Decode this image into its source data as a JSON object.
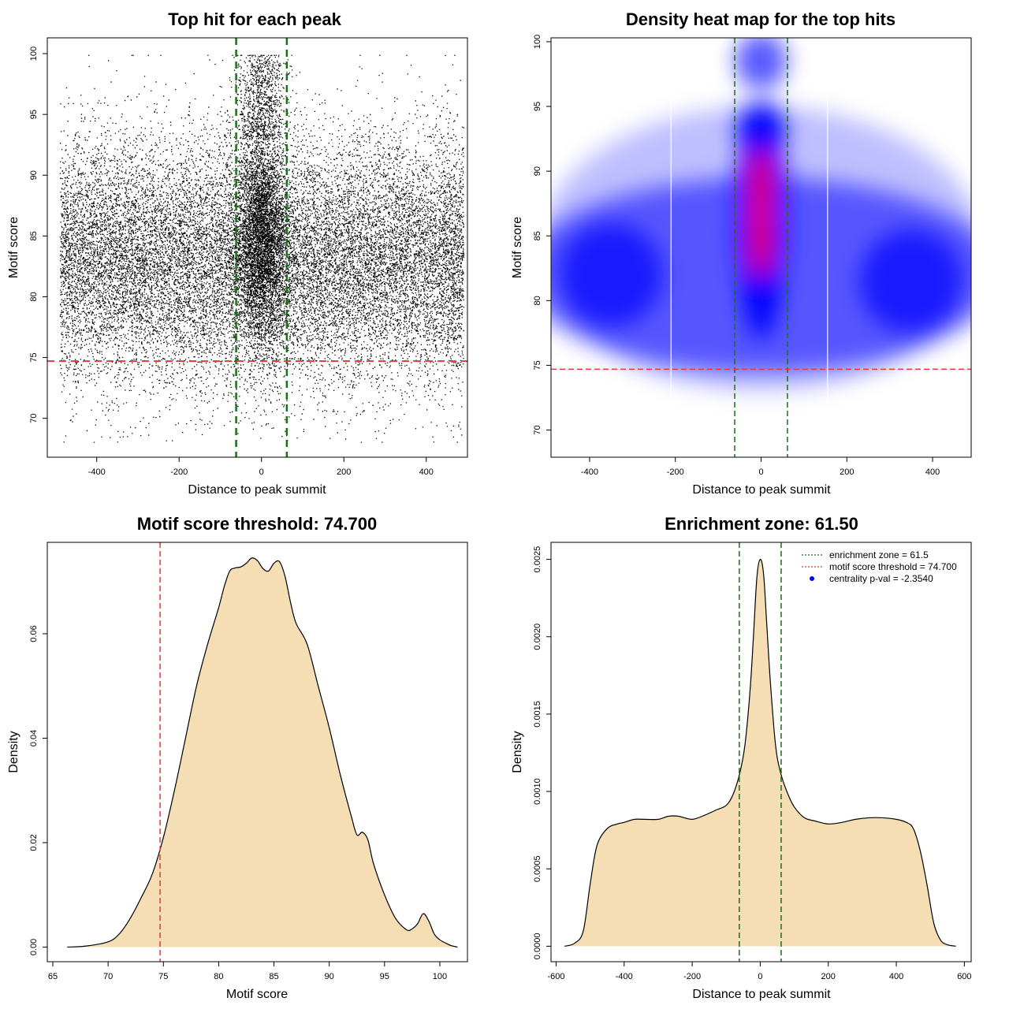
{
  "colors": {
    "scatter_point": "#000000",
    "threshold_line": "#e53935",
    "zone_line": "#1b6e1b",
    "density_fill": "#f5deb3",
    "heat_low": "#ffffff",
    "heat_mid": "#0000ff",
    "heat_high": "#ff0000"
  },
  "chart_data": [
    {
      "id": "top-hit-scatter",
      "type": "scatter",
      "title": "Top hit for each peak",
      "xlabel": "Distance to peak summit",
      "ylabel": "Motif score",
      "xticks": [
        -400,
        -200,
        0,
        200,
        400
      ],
      "yticks": [
        70,
        75,
        80,
        85,
        90,
        95,
        100
      ],
      "xlim": [
        -520,
        500
      ],
      "ylim": [
        66.8,
        101.3
      ],
      "point_count": 26000,
      "x_spread": [
        -490,
        490
      ],
      "center_spread_sd": 30,
      "score_mean": 83,
      "score_sd": 5,
      "threshold": 74.7,
      "enrichment_zone": [
        -61.5,
        61.5
      ]
    },
    {
      "id": "density-heatmap",
      "type": "heatmap",
      "title": "Density heat map for the top hits",
      "xlabel": "Distance to peak summit",
      "ylabel": "Motif score",
      "xticks": [
        -400,
        -200,
        0,
        200,
        400
      ],
      "yticks": [
        70,
        75,
        80,
        85,
        90,
        95,
        100
      ],
      "xlim": [
        -490,
        490
      ],
      "ylim": [
        67.9,
        100.3
      ],
      "threshold": 74.7,
      "enrichment_zone": [
        -61.5,
        61.5
      ],
      "hotspots": [
        {
          "x": 0,
          "y": 85,
          "intensity": 1.0
        },
        {
          "x": 0,
          "y": 88.5,
          "intensity": 0.9
        },
        {
          "x": 0,
          "y": 93.2,
          "intensity": 0.55
        },
        {
          "x": 0,
          "y": 98.5,
          "intensity": 0.4
        },
        {
          "x": -350,
          "y": 82,
          "intensity": 0.45
        },
        {
          "x": 350,
          "y": 81.5,
          "intensity": 0.45
        }
      ]
    },
    {
      "id": "motif-score-density",
      "type": "area",
      "title": "Motif score threshold: 74.700",
      "xlabel": "Motif score",
      "ylabel": "Density",
      "xticks": [
        65,
        70,
        75,
        80,
        85,
        90,
        95,
        100
      ],
      "yticks": [
        0.0,
        0.02,
        0.04,
        0.06
      ],
      "ytick_labels": [
        "0.00",
        "0.02",
        "0.04",
        "0.06"
      ],
      "xlim": [
        64.5,
        102.5
      ],
      "ylim": [
        -0.0028,
        0.0775
      ],
      "threshold": 74.7,
      "x": [
        66.3,
        68,
        70,
        71,
        72,
        73,
        74,
        75,
        76,
        77,
        78,
        79,
        80,
        80.5,
        81,
        81.5,
        82,
        82.5,
        83,
        83.5,
        84,
        84.5,
        85,
        85.5,
        86,
        86.5,
        87,
        88,
        89,
        90,
        91,
        92,
        92.5,
        93,
        93.5,
        94,
        95,
        96,
        97,
        97.5,
        98,
        98.5,
        99,
        99.5,
        100,
        100.5,
        101,
        101.6
      ],
      "y": [
        0.0,
        0.0002,
        0.001,
        0.0025,
        0.0055,
        0.0095,
        0.014,
        0.021,
        0.03,
        0.04,
        0.05,
        0.058,
        0.065,
        0.069,
        0.072,
        0.0726,
        0.0728,
        0.0735,
        0.0745,
        0.074,
        0.0725,
        0.072,
        0.0735,
        0.0738,
        0.071,
        0.066,
        0.062,
        0.058,
        0.05,
        0.042,
        0.033,
        0.025,
        0.0215,
        0.022,
        0.0205,
        0.016,
        0.01,
        0.0055,
        0.0033,
        0.0035,
        0.0045,
        0.0064,
        0.005,
        0.0025,
        0.0014,
        0.0008,
        0.0003,
        0.0
      ]
    },
    {
      "id": "distance-density",
      "type": "area",
      "title": "Enrichment zone: 61.50",
      "xlabel": "Distance to peak summit",
      "ylabel": "Density",
      "xticks": [
        -600,
        -400,
        -200,
        0,
        200,
        400,
        600
      ],
      "yticks": [
        0.0,
        0.0005,
        0.001,
        0.0015,
        0.002,
        0.0025
      ],
      "ytick_labels": [
        "0.0000",
        "0.0005",
        "0.0010",
        "0.0015",
        "0.0020",
        "0.0025"
      ],
      "xlim": [
        -615,
        620
      ],
      "ylim": [
        -0.0001,
        0.00261
      ],
      "enrichment_zone": [
        -61.5,
        61.5
      ],
      "x": [
        -575,
        -545,
        -520,
        -500,
        -480,
        -450,
        -420,
        -400,
        -370,
        -340,
        -300,
        -270,
        -240,
        -200,
        -160,
        -130,
        -100,
        -80,
        -60,
        -45,
        -30,
        -20,
        -10,
        0,
        10,
        20,
        30,
        45,
        60,
        80,
        100,
        130,
        160,
        200,
        240,
        280,
        320,
        360,
        400,
        430,
        450,
        470,
        490,
        510,
        530,
        550,
        575
      ],
      "y": [
        0.0,
        2e-05,
        0.0001,
        0.0004,
        0.00065,
        0.00076,
        0.00079,
        0.0008,
        0.00082,
        0.00082,
        0.00082,
        0.00084,
        0.00084,
        0.00082,
        0.00085,
        0.00088,
        0.00091,
        0.00098,
        0.00112,
        0.0013,
        0.00165,
        0.002,
        0.00238,
        0.0025,
        0.0024,
        0.00205,
        0.0017,
        0.0013,
        0.00112,
        0.00099,
        0.0009,
        0.00083,
        0.00081,
        0.00079,
        0.0008,
        0.00082,
        0.00083,
        0.00083,
        0.00082,
        0.0008,
        0.00076,
        0.00062,
        0.0004,
        0.00015,
        4e-05,
        1e-05,
        0.0
      ],
      "legend": {
        "position": "top-right",
        "entries": [
          {
            "label": "enrichment zone = 61.5",
            "style": "dotted",
            "color_key": "zone_line"
          },
          {
            "label": "motif score threshold = 74.700",
            "style": "dotted",
            "color_key": "threshold_line"
          },
          {
            "label": "centrality p-val = -2.3540",
            "style": "point",
            "color_key": "heat_mid"
          }
        ]
      }
    }
  ]
}
